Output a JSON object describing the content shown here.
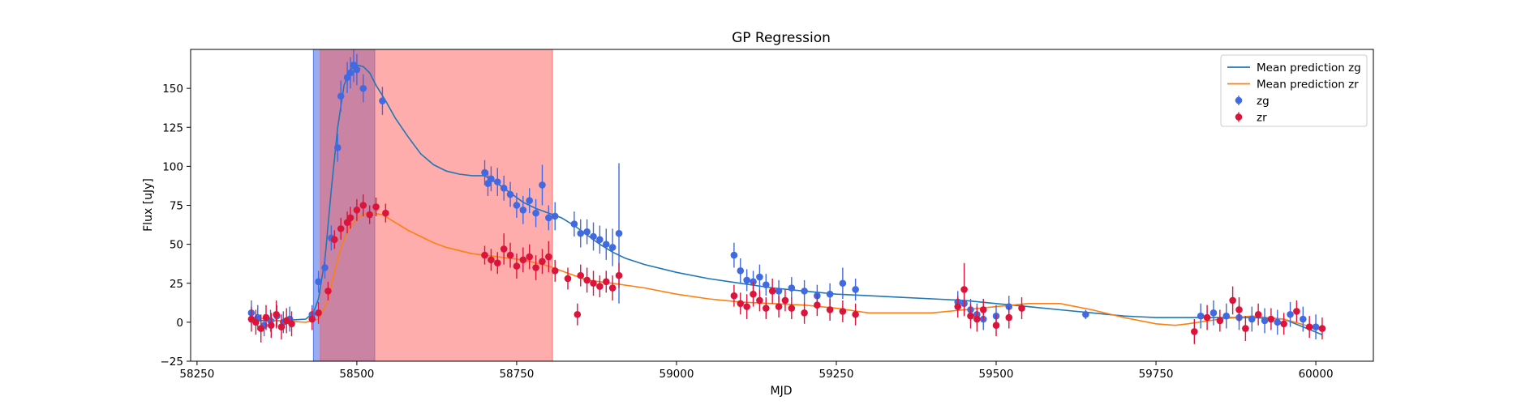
{
  "chart_data": {
    "type": "scatter",
    "title": "GP Regression",
    "xlabel": "MJD",
    "ylabel": "Flux [uJy]",
    "xlim": [
      58240,
      60090
    ],
    "ylim": [
      -25,
      175
    ],
    "xticks": [
      58250,
      58500,
      58750,
      59000,
      59250,
      59500,
      59750,
      60000
    ],
    "yticks": [
      -25,
      0,
      25,
      50,
      75,
      100,
      125,
      150
    ],
    "grid": false,
    "legend_position": "top-right",
    "spans": [
      {
        "name": "zg-window",
        "x0": 58432,
        "x1": 58528,
        "color": "#4169e1",
        "opacity": 0.55
      },
      {
        "name": "zr-window",
        "x0": 58443,
        "x1": 58806,
        "color": "#ff5a5a",
        "opacity": 0.5
      }
    ],
    "series": [
      {
        "name": "Mean prediction zg",
        "kind": "line",
        "color": "#1f77b4",
        "x": [
          58335,
          58380,
          58420,
          58432,
          58440,
          58450,
          58460,
          58470,
          58480,
          58490,
          58500,
          58510,
          58520,
          58530,
          58545,
          58560,
          58580,
          58600,
          58620,
          58640,
          58660,
          58680,
          58700,
          58720,
          58740,
          58760,
          58780,
          58800,
          58820,
          58840,
          58860,
          58880,
          58900,
          58920,
          58950,
          59000,
          59050,
          59100,
          59150,
          59200,
          59250,
          59300,
          59350,
          59400,
          59450,
          59500,
          59550,
          59600,
          59650,
          59700,
          59750,
          59800,
          59850,
          59900,
          59950,
          60010
        ],
        "y": [
          1,
          1,
          2,
          6,
          15,
          40,
          85,
          125,
          152,
          162,
          165,
          164,
          160,
          152,
          142,
          131,
          119,
          108,
          101,
          97,
          95,
          94,
          94,
          89,
          83,
          77,
          73,
          70,
          67,
          62,
          56,
          50,
          45,
          41,
          37,
          32,
          28,
          25,
          22,
          20,
          18,
          17,
          16,
          15,
          14,
          12,
          10,
          8,
          6,
          4,
          3,
          3,
          3,
          3,
          2,
          -8
        ]
      },
      {
        "name": "Mean prediction zr",
        "kind": "line",
        "color": "#ff7f0e",
        "x": [
          58335,
          58380,
          58420,
          58440,
          58455,
          58465,
          58475,
          58485,
          58495,
          58505,
          58515,
          58525,
          58540,
          58560,
          58580,
          58600,
          58620,
          58640,
          58660,
          58680,
          58700,
          58720,
          58740,
          58760,
          58780,
          58800,
          58820,
          58840,
          58860,
          58880,
          58900,
          58950,
          59000,
          59050,
          59100,
          59150,
          59200,
          59250,
          59300,
          59350,
          59400,
          59450,
          59500,
          59550,
          59600,
          59650,
          59700,
          59750,
          59780,
          59800,
          59850,
          59900,
          59950,
          60010
        ],
        "y": [
          3,
          1,
          0,
          2,
          14,
          32,
          48,
          58,
          64,
          68,
          70,
          70,
          69,
          64,
          59,
          55,
          51,
          48,
          46,
          44,
          43,
          42,
          41,
          40,
          38,
          36,
          33,
          30,
          27,
          26,
          25,
          22,
          18,
          15,
          13,
          12,
          11,
          9,
          6,
          6,
          6,
          8,
          10,
          12,
          12,
          8,
          3,
          -1,
          -2,
          -1,
          2,
          4,
          2,
          -5
        ]
      },
      {
        "name": "zg",
        "kind": "errorbar",
        "color": "#4169e1",
        "x": [
          58335,
          58345,
          58355,
          58365,
          58375,
          58385,
          58395,
          58430,
          58440,
          58450,
          58460,
          58470,
          58475,
          58485,
          58490,
          58495,
          58500,
          58510,
          58540,
          58700,
          58705,
          58710,
          58720,
          58730,
          58740,
          58750,
          58760,
          58770,
          58780,
          58790,
          58800,
          58810,
          58840,
          58850,
          58860,
          58870,
          58880,
          58890,
          58900,
          58910,
          59090,
          59100,
          59110,
          59120,
          59130,
          59140,
          59160,
          59180,
          59200,
          59220,
          59240,
          59260,
          59280,
          59440,
          59450,
          59460,
          59470,
          59480,
          59500,
          59520,
          59640,
          59820,
          59840,
          59860,
          59880,
          59900,
          59920,
          59940,
          59960,
          59980,
          60000
        ],
        "y": [
          6,
          3,
          -2,
          1,
          4,
          0,
          2,
          5,
          26,
          35,
          54,
          112,
          145,
          157,
          160,
          165,
          162,
          150,
          142,
          96,
          89,
          92,
          90,
          86,
          82,
          75,
          72,
          78,
          70,
          88,
          67,
          68,
          63,
          57,
          58,
          55,
          53,
          50,
          48,
          57,
          43,
          33,
          27,
          26,
          29,
          24,
          20,
          22,
          20,
          17,
          18,
          25,
          21,
          13,
          12,
          8,
          5,
          2,
          4,
          10,
          5,
          4,
          6,
          4,
          3,
          2,
          1,
          0,
          5,
          2,
          -3
        ],
        "err": [
          8,
          8,
          7,
          7,
          7,
          7,
          8,
          6,
          7,
          7,
          8,
          9,
          10,
          10,
          10,
          11,
          10,
          9,
          9,
          8,
          8,
          8,
          9,
          8,
          8,
          8,
          9,
          8,
          9,
          13,
          8,
          9,
          8,
          9,
          8,
          9,
          9,
          10,
          12,
          45,
          8,
          8,
          7,
          7,
          8,
          7,
          7,
          7,
          7,
          7,
          7,
          10,
          7,
          7,
          8,
          7,
          7,
          7,
          7,
          7,
          3,
          8,
          8,
          8,
          8,
          8,
          8,
          8,
          8,
          8,
          8
        ]
      },
      {
        "name": "zr",
        "kind": "errorbar",
        "color": "#dc143c",
        "x": [
          58335,
          58342,
          58350,
          58358,
          58366,
          58374,
          58382,
          58390,
          58398,
          58430,
          58440,
          58455,
          58465,
          58475,
          58485,
          58490,
          58500,
          58510,
          58520,
          58530,
          58545,
          58700,
          58710,
          58720,
          58730,
          58740,
          58750,
          58760,
          58770,
          58780,
          58790,
          58800,
          58810,
          58830,
          58845,
          58850,
          58860,
          58870,
          58880,
          58890,
          58900,
          58910,
          59090,
          59100,
          59110,
          59120,
          59130,
          59140,
          59150,
          59160,
          59170,
          59180,
          59200,
          59220,
          59240,
          59260,
          59280,
          59440,
          59450,
          59460,
          59470,
          59480,
          59500,
          59520,
          59540,
          59810,
          59830,
          59850,
          59870,
          59880,
          59890,
          59910,
          59930,
          59950,
          59970,
          59990,
          60010
        ],
        "y": [
          2,
          0,
          -4,
          3,
          -2,
          5,
          -3,
          1,
          -1,
          2,
          6,
          20,
          53,
          60,
          64,
          67,
          72,
          75,
          69,
          74,
          70,
          43,
          40,
          38,
          47,
          43,
          36,
          40,
          42,
          35,
          39,
          42,
          33,
          28,
          5,
          30,
          27,
          25,
          23,
          26,
          22,
          30,
          17,
          12,
          10,
          18,
          14,
          9,
          20,
          10,
          14,
          9,
          6,
          11,
          8,
          7,
          5,
          10,
          21,
          4,
          2,
          8,
          -2,
          3,
          9,
          -6,
          3,
          1,
          14,
          8,
          -4,
          5,
          2,
          -1,
          7,
          -3,
          -4
        ],
        "err": [
          8,
          8,
          9,
          8,
          8,
          9,
          8,
          8,
          8,
          7,
          7,
          6,
          6,
          7,
          7,
          7,
          7,
          7,
          6,
          6,
          6,
          6,
          7,
          7,
          10,
          8,
          8,
          8,
          8,
          8,
          8,
          10,
          7,
          7,
          7,
          7,
          8,
          8,
          7,
          7,
          8,
          8,
          7,
          7,
          8,
          8,
          7,
          7,
          8,
          7,
          7,
          7,
          7,
          7,
          7,
          7,
          7,
          7,
          17,
          8,
          8,
          7,
          7,
          7,
          7,
          8,
          8,
          7,
          9,
          8,
          8,
          7,
          7,
          7,
          7,
          7,
          7
        ]
      }
    ]
  }
}
